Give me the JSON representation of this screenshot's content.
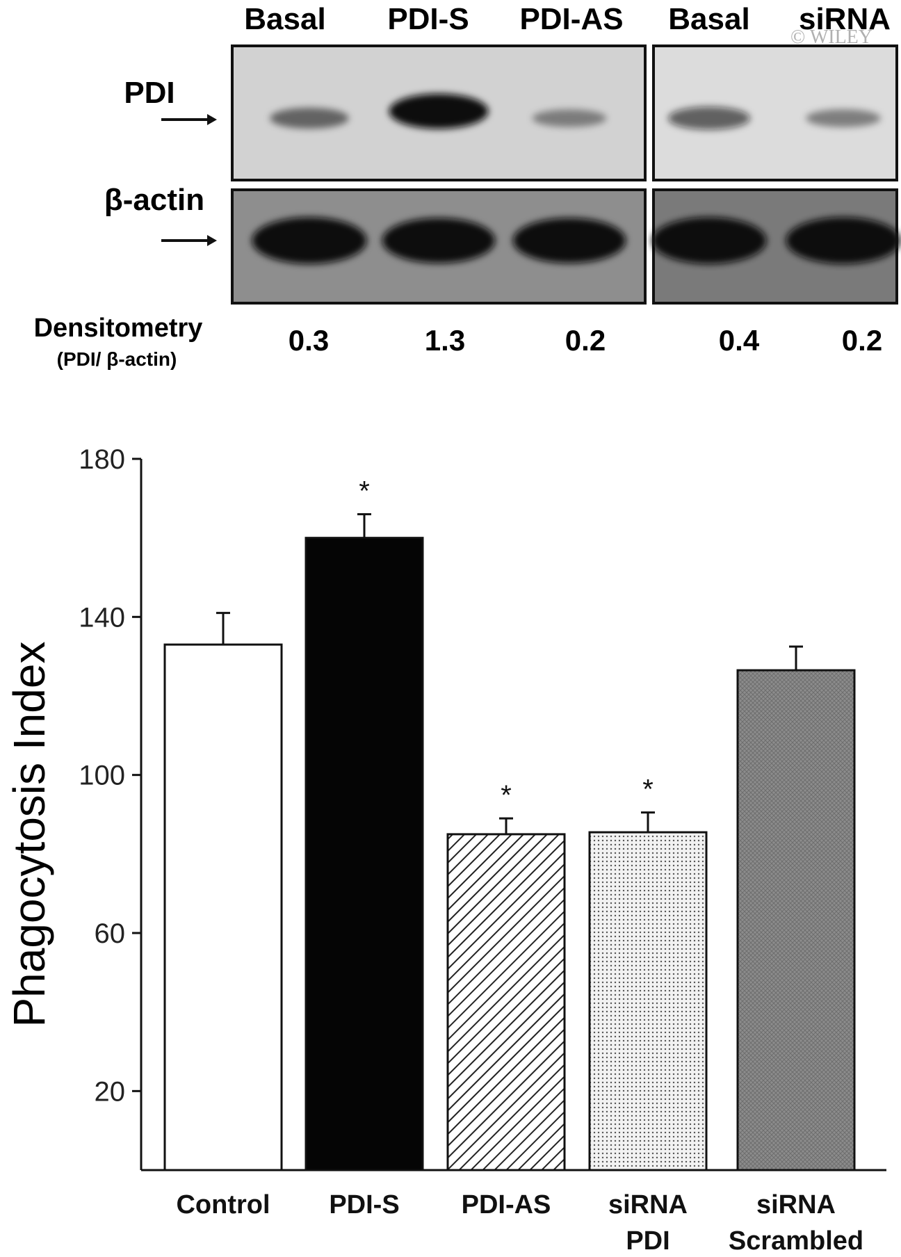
{
  "copyright": "© WILEY",
  "blot": {
    "lane_labels": [
      "Basal",
      "PDI-S",
      "PDI-AS",
      "Basal",
      "siRNA"
    ],
    "rows": [
      {
        "label": "PDI"
      },
      {
        "label": "β-actin"
      }
    ],
    "densitometry": {
      "label": "Densitometry",
      "sublabel": "(PDI/ β-actin)",
      "values": [
        "0.3",
        "1.3",
        "0.2",
        "0.4",
        "0.2"
      ]
    },
    "band_intensity": {
      "PDI": [
        0.35,
        1.0,
        0.2,
        0.45,
        0.22
      ],
      "beta_actin": [
        1.0,
        0.95,
        0.95,
        1.0,
        1.0
      ]
    }
  },
  "chart_data": {
    "type": "bar",
    "categories": [
      "Control",
      "PDI-S",
      "PDI-AS",
      "siRNA PDI",
      "siRNA Scrambled"
    ],
    "category_lines": [
      [
        "Control"
      ],
      [
        "PDI-S"
      ],
      [
        "PDI-AS"
      ],
      [
        "siRNA",
        "PDI"
      ],
      [
        "siRNA",
        "Scrambled"
      ]
    ],
    "values": [
      133,
      160,
      85,
      85.5,
      126.5
    ],
    "errors": [
      8,
      6,
      4,
      5,
      6
    ],
    "significant": [
      false,
      true,
      true,
      true,
      false
    ],
    "significance_mark": "*",
    "fill_styles": [
      "white",
      "black",
      "diagonal-hatch",
      "dots",
      "gray-crosshatch"
    ],
    "title": "",
    "xlabel": "",
    "ylabel": "Phagocytosis Index",
    "ylim": [
      0,
      180
    ],
    "yticks": [
      20,
      60,
      100,
      140,
      180
    ],
    "grid": false
  }
}
